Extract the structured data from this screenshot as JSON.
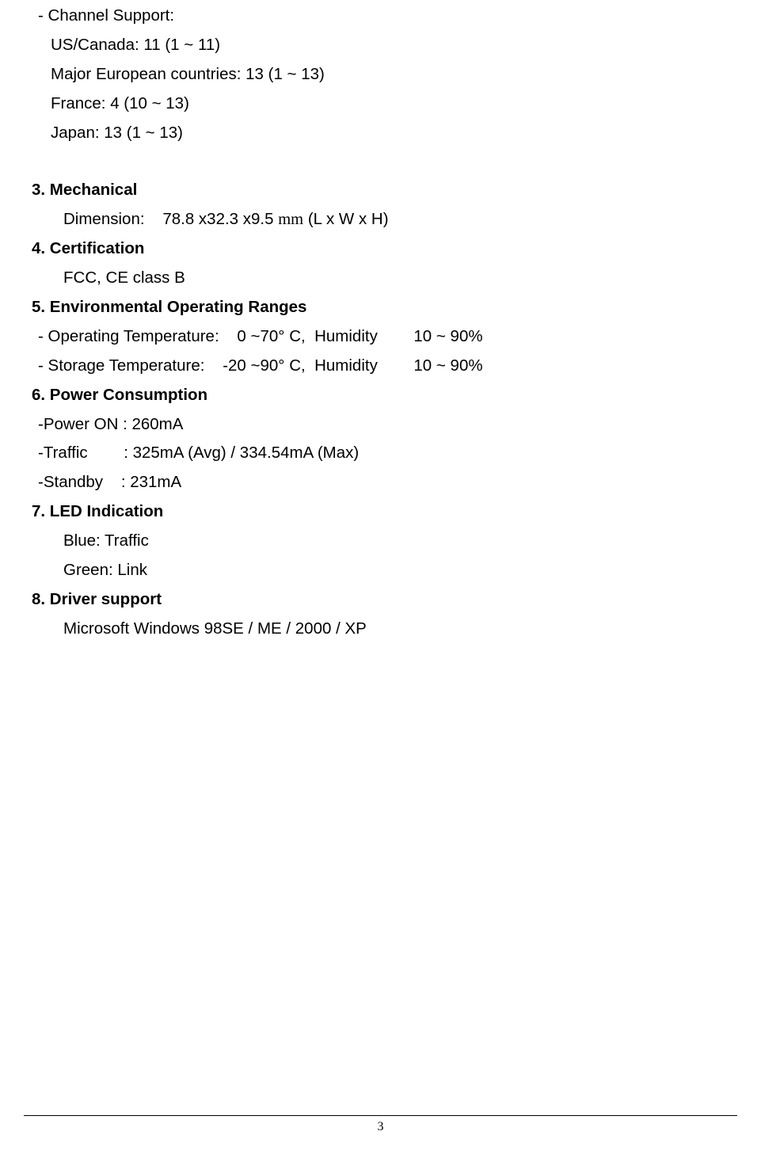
{
  "channel_support": {
    "label": "- Channel Support:",
    "us_canada": "US/Canada: 11 (1 ~ 11)",
    "europe": "Major European countries: 13 (1 ~ 13)",
    "france": "France: 4 (10 ~ 13)",
    "japan": "Japan: 13 (1 ~ 13)"
  },
  "sections": {
    "mechanical": {
      "heading": "3. Mechanical",
      "dimension_label": "Dimension:    78.8 x32.3 x9.5 ",
      "dimension_unit": "mm",
      "dimension_suffix": " (L x W x H)"
    },
    "certification": {
      "heading": "4. Certification",
      "value": "FCC, CE class B"
    },
    "environmental": {
      "heading": "5. Environmental Operating Ranges",
      "operating": "- Operating Temperature:    0 ~70° C,  Humidity        10 ~ 90%",
      "storage": "- Storage Temperature:    -20 ~90° C,  Humidity        10 ~ 90%"
    },
    "power": {
      "heading": "6. Power Consumption",
      "power_on": "-Power ON : 260mA",
      "traffic": "-Traffic        : 325mA (Avg) / 334.54mA (Max)",
      "standby": "-Standby    : 231mA"
    },
    "led": {
      "heading": "7. LED Indication",
      "blue": "Blue: Traffic",
      "green": "Green: Link"
    },
    "driver": {
      "heading": "8. Driver support",
      "value": "Microsoft Windows 98SE / ME / 2000 / XP"
    }
  },
  "page_number": "3"
}
